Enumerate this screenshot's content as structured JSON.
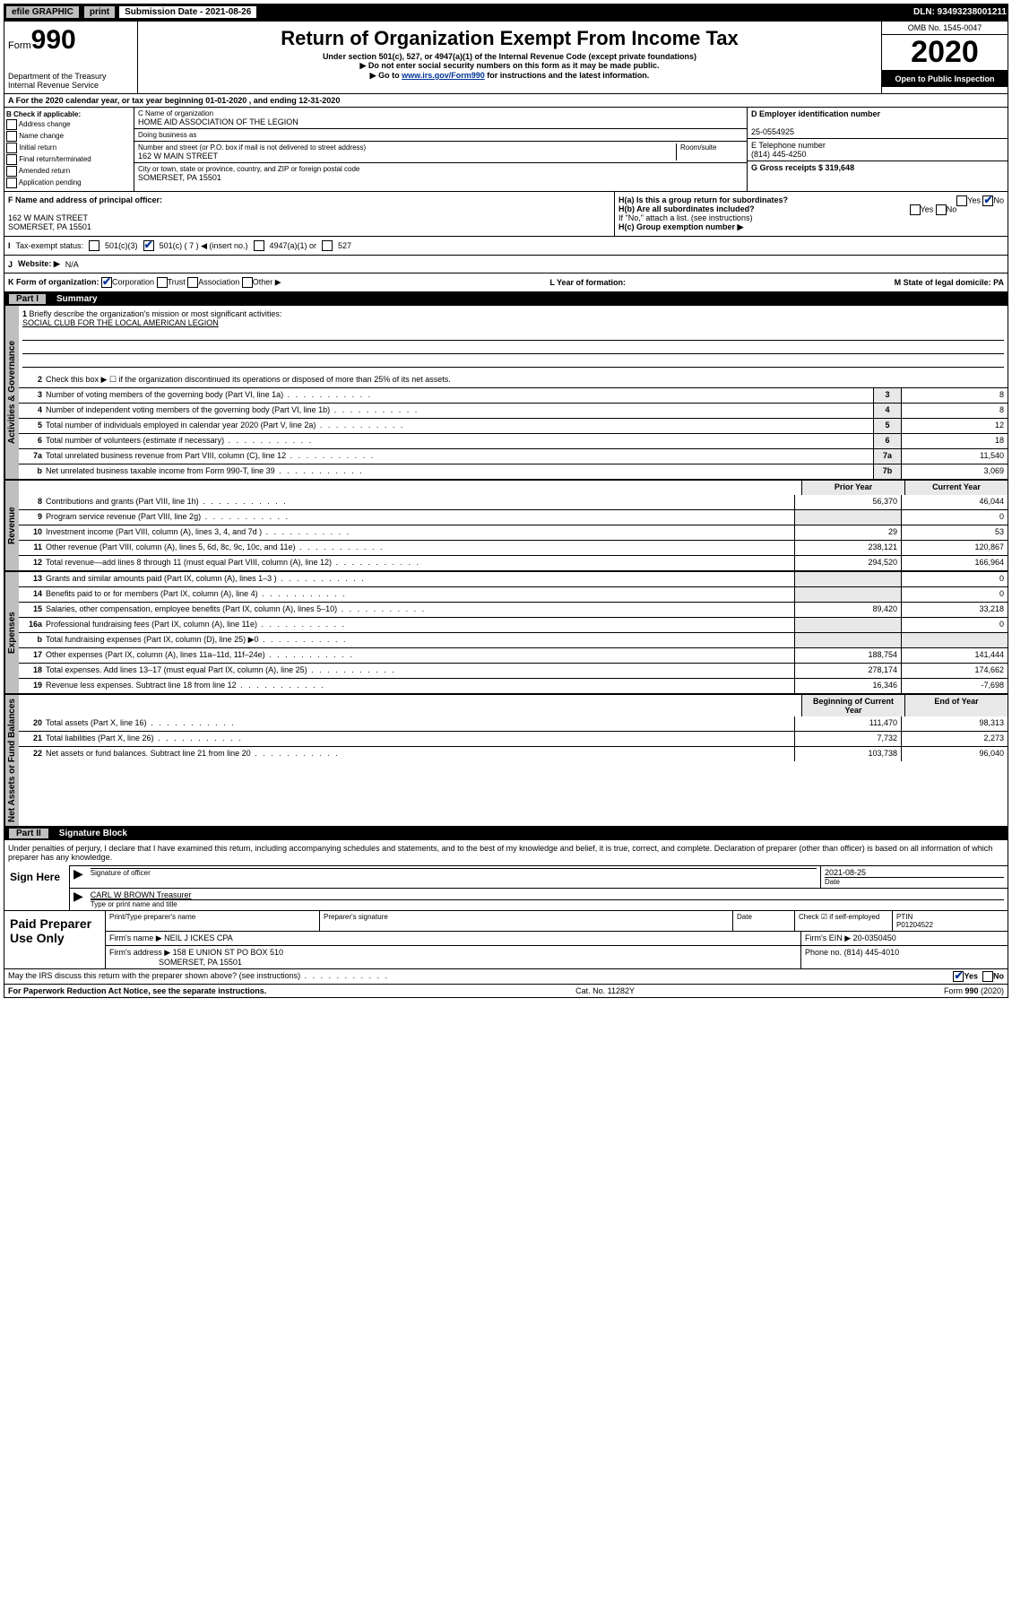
{
  "topbar": {
    "efile": "efile GRAPHIC",
    "print": "print",
    "sub_label": "Submission Date - 2021-08-26",
    "dln": "DLN: 93493238001211"
  },
  "header": {
    "form_prefix": "Form",
    "form_num": "990",
    "dept": "Department of the Treasury Internal Revenue Service",
    "title": "Return of Organization Exempt From Income Tax",
    "sub1": "Under section 501(c), 527, or 4947(a)(1) of the Internal Revenue Code (except private foundations)",
    "sub2": "▶ Do not enter social security numbers on this form as it may be made public.",
    "sub3_pre": "▶ Go to ",
    "sub3_link": "www.irs.gov/Form990",
    "sub3_post": " for instructions and the latest information.",
    "omb": "OMB No. 1545-0047",
    "year": "2020",
    "open": "Open to Public Inspection"
  },
  "row_a": "A For the 2020 calendar year, or tax year beginning 01-01-2020    , and ending 12-31-2020",
  "col_b": {
    "label": "B Check if applicable:",
    "opts": [
      "Address change",
      "Name change",
      "Initial return",
      "Final return/terminated",
      "Amended return",
      "Application pending"
    ]
  },
  "c": {
    "name_lbl": "C Name of organization",
    "name": "HOME AID ASSOCIATION OF THE LEGION",
    "dba_lbl": "Doing business as",
    "addr_lbl": "Number and street (or P.O. box if mail is not delivered to street address)",
    "room_lbl": "Room/suite",
    "addr": "162 W MAIN STREET",
    "city_lbl": "City or town, state or province, country, and ZIP or foreign postal code",
    "city": "SOMERSET, PA  15501"
  },
  "right": {
    "d_lbl": "D Employer identification number",
    "ein": "25-0554925",
    "e_lbl": "E Telephone number",
    "phone": "(814) 445-4250",
    "g_lbl": "G Gross receipts $ 319,648"
  },
  "f": {
    "lbl": "F Name and address of principal officer:",
    "addr1": "162 W MAIN STREET",
    "addr2": "SOMERSET, PA  15501"
  },
  "h": {
    "a": "H(a)  Is this a group return for subordinates?",
    "b": "H(b)  Are all subordinates included?",
    "note": "If \"No,\" attach a list. (see instructions)",
    "c": "H(c)  Group exemption number ▶",
    "yes": "Yes",
    "no": "No"
  },
  "status": {
    "i": "I",
    "lbl": "Tax-exempt status:",
    "c3": "501(c)(3)",
    "c": "501(c) ( 7 ) ◀ (insert no.)",
    "a1": "4947(a)(1) or",
    "s527": "527"
  },
  "website": {
    "j": "J",
    "lbl": "Website: ▶",
    "val": "N/A"
  },
  "korg": {
    "k": "K Form of organization:",
    "corp": "Corporation",
    "trust": "Trust",
    "assoc": "Association",
    "other": "Other ▶",
    "l": "L Year of formation:",
    "m": "M State of legal domicile: PA"
  },
  "part1": {
    "pt": "Part I",
    "title": "Summary"
  },
  "mission": {
    "num": "1",
    "lbl": "Briefly describe the organization's mission or most significant activities:",
    "text": "SOCIAL CLUB FOR THE LOCAL AMERICAN LEGION"
  },
  "gov_lines": [
    {
      "n": "2",
      "d": "Check this box ▶ ☐ if the organization discontinued its operations or disposed of more than 25% of its net assets."
    },
    {
      "n": "3",
      "d": "Number of voting members of the governing body (Part VI, line 1a)",
      "bn": "3",
      "v": "8"
    },
    {
      "n": "4",
      "d": "Number of independent voting members of the governing body (Part VI, line 1b)",
      "bn": "4",
      "v": "8"
    },
    {
      "n": "5",
      "d": "Total number of individuals employed in calendar year 2020 (Part V, line 2a)",
      "bn": "5",
      "v": "12"
    },
    {
      "n": "6",
      "d": "Total number of volunteers (estimate if necessary)",
      "bn": "6",
      "v": "18"
    },
    {
      "n": "7a",
      "d": "Total unrelated business revenue from Part VIII, column (C), line 12",
      "bn": "7a",
      "v": "11,540"
    },
    {
      "n": "b",
      "d": "Net unrelated business taxable income from Form 990-T, line 39",
      "bn": "7b",
      "v": "3,069"
    }
  ],
  "col_headers": {
    "py": "Prior Year",
    "cy": "Current Year"
  },
  "rev_lines": [
    {
      "n": "8",
      "d": "Contributions and grants (Part VIII, line 1h)",
      "py": "56,370",
      "cy": "46,044"
    },
    {
      "n": "9",
      "d": "Program service revenue (Part VIII, line 2g)",
      "py": "",
      "cy": "0"
    },
    {
      "n": "10",
      "d": "Investment income (Part VIII, column (A), lines 3, 4, and 7d )",
      "py": "29",
      "cy": "53"
    },
    {
      "n": "11",
      "d": "Other revenue (Part VIII, column (A), lines 5, 6d, 8c, 9c, 10c, and 11e)",
      "py": "238,121",
      "cy": "120,867"
    },
    {
      "n": "12",
      "d": "Total revenue—add lines 8 through 11 (must equal Part VIII, column (A), line 12)",
      "py": "294,520",
      "cy": "166,964"
    }
  ],
  "exp_lines": [
    {
      "n": "13",
      "d": "Grants and similar amounts paid (Part IX, column (A), lines 1–3 )",
      "py": "",
      "cy": "0"
    },
    {
      "n": "14",
      "d": "Benefits paid to or for members (Part IX, column (A), line 4)",
      "py": "",
      "cy": "0"
    },
    {
      "n": "15",
      "d": "Salaries, other compensation, employee benefits (Part IX, column (A), lines 5–10)",
      "py": "89,420",
      "cy": "33,218"
    },
    {
      "n": "16a",
      "d": "Professional fundraising fees (Part IX, column (A), line 11e)",
      "py": "",
      "cy": "0"
    },
    {
      "n": "b",
      "d": "Total fundraising expenses (Part IX, column (D), line 25) ▶0",
      "py": "",
      "cy": ""
    },
    {
      "n": "17",
      "d": "Other expenses (Part IX, column (A), lines 11a–11d, 11f–24e)",
      "py": "188,754",
      "cy": "141,444"
    },
    {
      "n": "18",
      "d": "Total expenses. Add lines 13–17 (must equal Part IX, column (A), line 25)",
      "py": "278,174",
      "cy": "174,662"
    },
    {
      "n": "19",
      "d": "Revenue less expenses. Subtract line 18 from line 12",
      "py": "16,346",
      "cy": "-7,698"
    }
  ],
  "na_headers": {
    "by": "Beginning of Current Year",
    "ey": "End of Year"
  },
  "na_lines": [
    {
      "n": "20",
      "d": "Total assets (Part X, line 16)",
      "py": "111,470",
      "cy": "98,313"
    },
    {
      "n": "21",
      "d": "Total liabilities (Part X, line 26)",
      "py": "7,732",
      "cy": "2,273"
    },
    {
      "n": "22",
      "d": "Net assets or fund balances. Subtract line 21 from line 20",
      "py": "103,738",
      "cy": "96,040"
    }
  ],
  "side_labels": {
    "gov": "Activities & Governance",
    "rev": "Revenue",
    "exp": "Expenses",
    "na": "Net Assets or Fund Balances"
  },
  "part2": {
    "pt": "Part II",
    "title": "Signature Block"
  },
  "perjury": "Under penalties of perjury, I declare that I have examined this return, including accompanying schedules and statements, and to the best of my knowledge and belief, it is true, correct, and complete. Declaration of preparer (other than officer) is based on all information of which preparer has any knowledge.",
  "sign": {
    "here": "Sign Here",
    "sig_lbl": "Signature of officer",
    "date": "2021-08-25",
    "date_lbl": "Date",
    "name": "CARL W BROWN  Treasurer",
    "name_lbl": "Type or print name and title"
  },
  "prep": {
    "lbl": "Paid Preparer Use Only",
    "h1": "Print/Type preparer's name",
    "h2": "Preparer's signature",
    "h3": "Date",
    "h4": "Check ☑ if self-employed",
    "h5_lbl": "PTIN",
    "ptin": "P01204522",
    "firm_lbl": "Firm's name    ▶",
    "firm": "NEIL J ICKES CPA",
    "ein_lbl": "Firm's EIN ▶",
    "ein": "20-0350450",
    "addr_lbl": "Firm's address ▶",
    "addr1": "158 E UNION ST PO BOX 510",
    "addr2": "SOMERSET, PA  15501",
    "phone_lbl": "Phone no.",
    "phone": "(814) 445-4010"
  },
  "discuss": {
    "q": "May the IRS discuss this return with the preparer shown above? (see instructions)",
    "yes": "Yes",
    "no": "No"
  },
  "footer": {
    "pra": "For Paperwork Reduction Act Notice, see the separate instructions.",
    "cat": "Cat. No. 11282Y",
    "form": "Form 990 (2020)"
  },
  "colors": {
    "link": "#003399",
    "gray": "#bfbfbf",
    "lightgray": "#e8e8e8"
  }
}
